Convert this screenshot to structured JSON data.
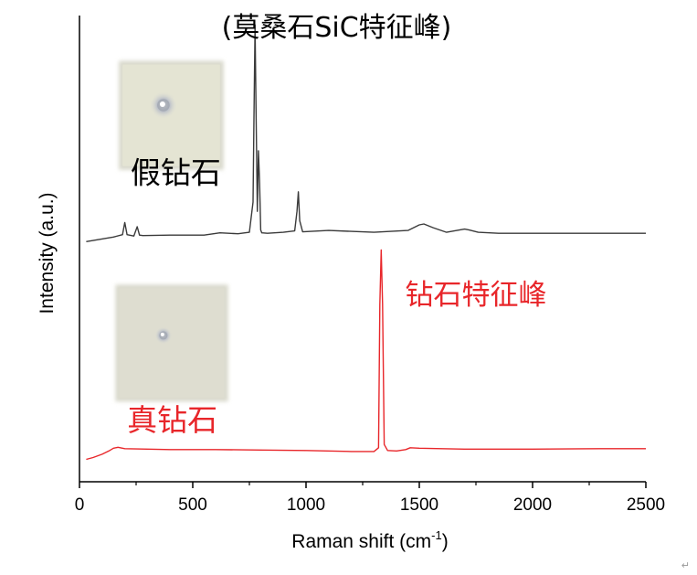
{
  "chart_data": {
    "type": "line",
    "xlabel": "Raman shift (cm",
    "xlabel_sup": "-1",
    "xlabel_end": ")",
    "ylabel": "Intensity (a.u.)",
    "xlim": [
      0,
      2500
    ],
    "ylim": [
      0,
      100
    ],
    "x_ticks": [
      0,
      500,
      1000,
      1500,
      2000,
      2500
    ],
    "grid": false,
    "series": [
      {
        "name": "假钻石",
        "color": "#3a3a3a",
        "x": [
          30,
          150,
          190,
          200,
          210,
          240,
          255,
          265,
          280,
          400,
          550,
          620,
          700,
          750,
          766,
          770,
          775,
          780,
          785,
          790,
          795,
          800,
          805,
          830,
          900,
          950,
          960,
          966,
          972,
          985,
          1100,
          1300,
          1450,
          1500,
          1520,
          1560,
          1620,
          1700,
          1720,
          1760,
          1850,
          2000,
          2200,
          2400,
          2500
        ],
        "y": [
          51.5,
          52.5,
          53,
          55.6,
          53,
          52.7,
          54.7,
          52.9,
          52.8,
          52.9,
          52.9,
          53.4,
          53.2,
          53.5,
          60,
          78,
          98,
          78,
          58,
          71,
          64,
          54,
          53.4,
          53.3,
          53.5,
          53.8,
          58,
          62.2,
          56,
          53.6,
          53.9,
          53.5,
          53.9,
          55.1,
          55.3,
          54.5,
          53.5,
          54.2,
          54.0,
          53.5,
          53.3,
          53.3,
          53.3,
          53.3,
          53.3
        ]
      },
      {
        "name": "真钻石",
        "color": "#e8262a",
        "x": [
          30,
          60,
          100,
          130,
          150,
          170,
          200,
          300,
          400,
          600,
          800,
          1000,
          1200,
          1300,
          1320,
          1326,
          1332,
          1338,
          1345,
          1360,
          1400,
          1440,
          1460,
          1500,
          1700,
          2000,
          2300,
          2500
        ],
        "y": [
          4.8,
          5.2,
          5.9,
          6.6,
          7.2,
          7.4,
          7.1,
          7.0,
          6.9,
          6.9,
          6.8,
          6.7,
          6.5,
          6.5,
          7.3,
          38,
          49.7,
          38,
          8,
          6.7,
          6.6,
          6.9,
          7.3,
          7.2,
          7.0,
          7.0,
          7.1,
          7.1
        ]
      }
    ],
    "annotations": [
      {
        "text": "(莫桑石SiC特征峰)",
        "x": 1135,
        "y": 95.5,
        "color": "#000000",
        "size": 30
      },
      {
        "text": "假钻石",
        "x": 425,
        "y": 64,
        "color": "#000000",
        "size": 33
      },
      {
        "text": "钻石特征峰",
        "x": 1750,
        "y": 38,
        "color": "#e8262a",
        "size": 31
      },
      {
        "text": "真钻石",
        "x": 410,
        "y": 11,
        "color": "#e8262a",
        "size": 33
      }
    ],
    "insets": [
      {
        "name": "fake-diamond-photo",
        "x0": 190,
        "x1": 620,
        "y0": 67.7,
        "y1": 89.5
      },
      {
        "name": "real-diamond-photo",
        "x0": 175,
        "x1": 640,
        "y0": 18,
        "y1": 41.5
      }
    ]
  },
  "corner_mark": "↵"
}
